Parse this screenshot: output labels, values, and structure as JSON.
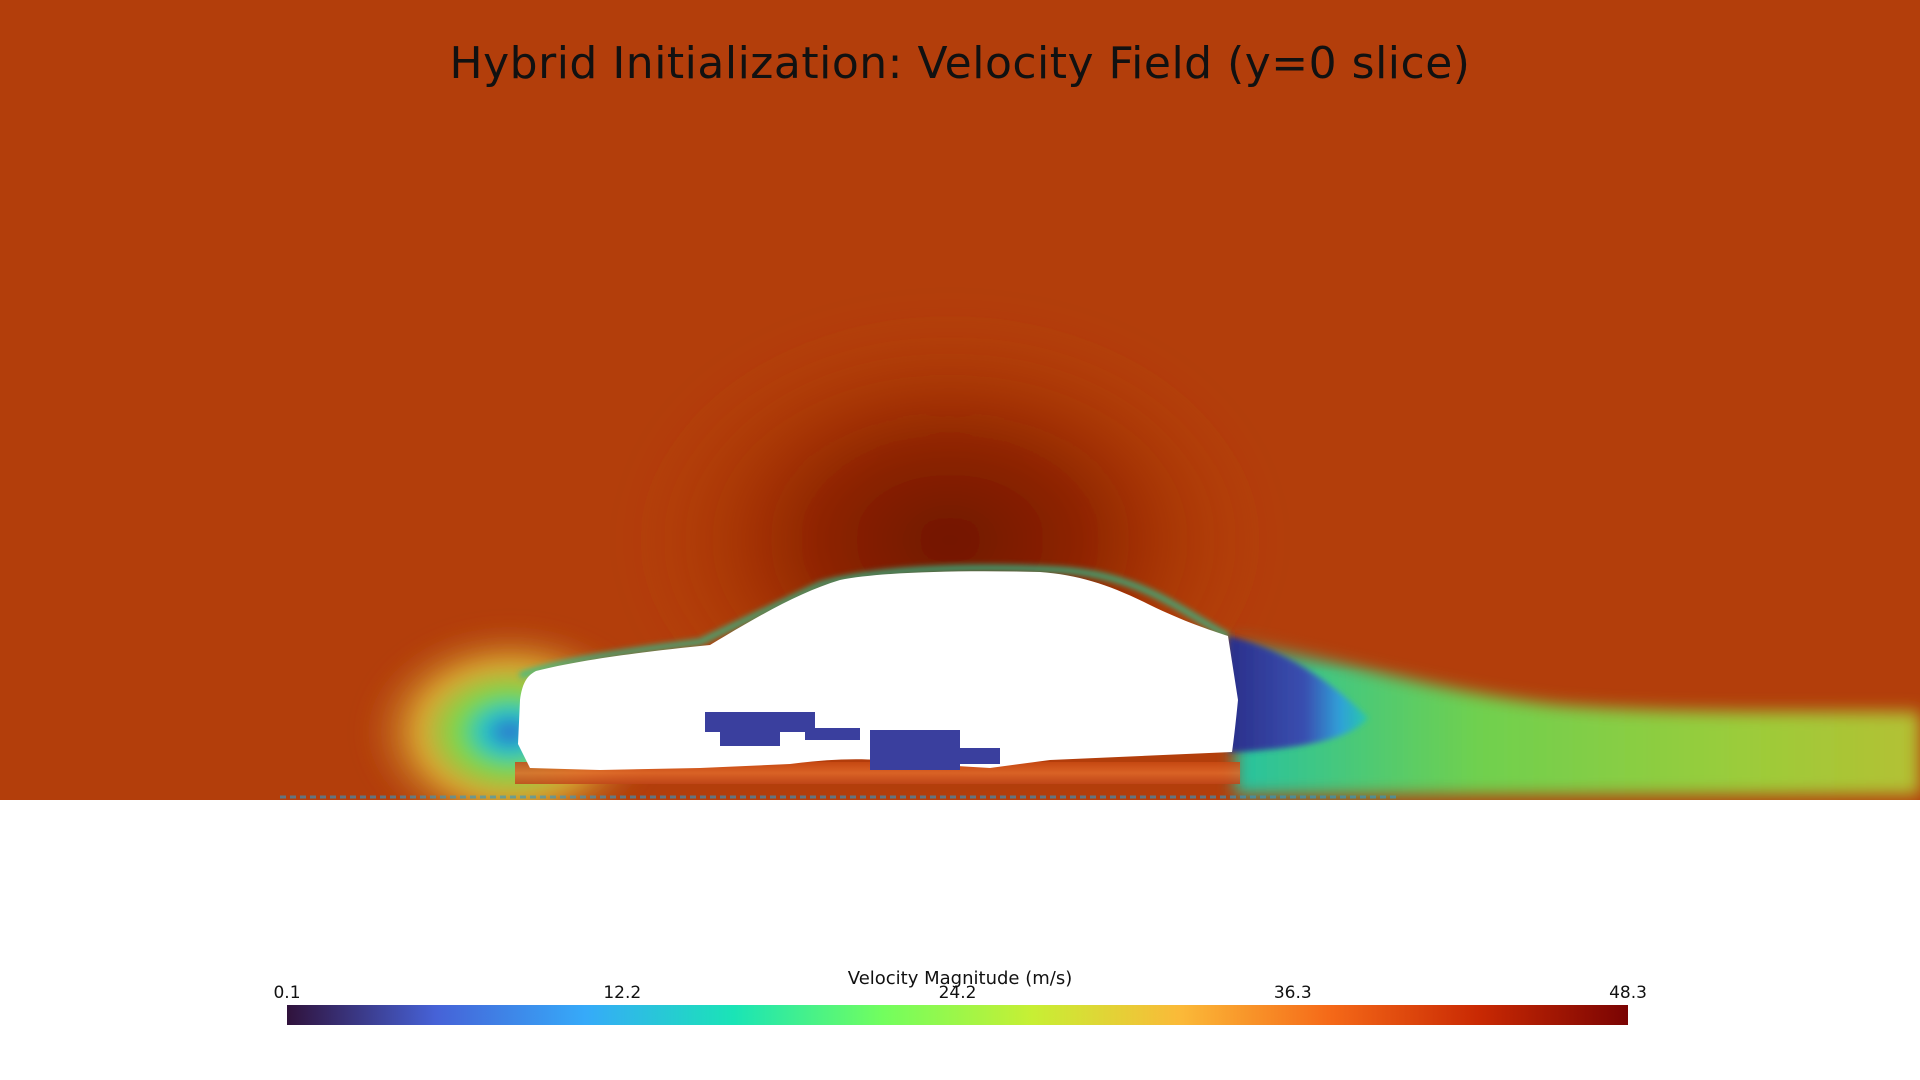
{
  "title": "Hybrid Initialization: Velocity Field (y=0 slice)",
  "colorbar": {
    "title": "Velocity Magnitude (m/s)",
    "ticks": [
      "0.1",
      "12.2",
      "24.2",
      "36.3",
      "48.3"
    ],
    "range": [
      0.1,
      48.3
    ],
    "colormap": "turbo",
    "colors": [
      "#30123b",
      "#4662d7",
      "#36aaf9",
      "#1ae4b6",
      "#72fe5e",
      "#c7ef34",
      "#fbb938",
      "#f56918",
      "#c92903",
      "#7a0403"
    ]
  },
  "field": {
    "freestream_color": "#b33e0b",
    "ground_color": "#ffffff"
  }
}
